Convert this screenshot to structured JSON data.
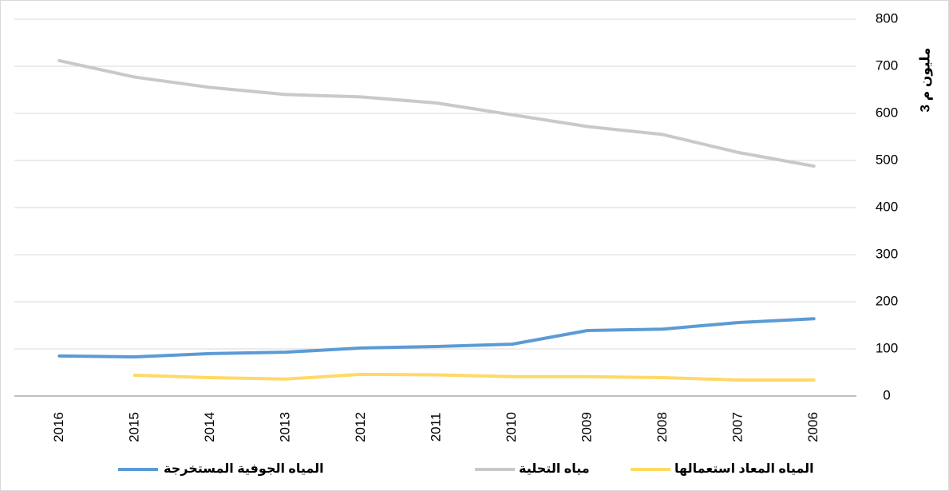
{
  "chart_data": {
    "type": "line",
    "y_label": "مليون م 3",
    "categories": [
      "2016",
      "2015",
      "2014",
      "2013",
      "2012",
      "2011",
      "2010",
      "2009",
      "2008",
      "2007",
      "2006"
    ],
    "series": [
      {
        "name": "المياه الجوفية المستخرجة",
        "color": "#5b9bd5",
        "values": [
          85,
          83,
          90,
          93,
          102,
          105,
          110,
          139,
          142,
          156,
          164
        ]
      },
      {
        "name": "مياه التحلية",
        "color": "#c9c9c9",
        "values": [
          712,
          677,
          655,
          640,
          635,
          622,
          597,
          572,
          555,
          517,
          488
        ]
      },
      {
        "name": "المياه المعاد استعمالها",
        "color": "#ffd966",
        "values": [
          null,
          44,
          39,
          36,
          46,
          45,
          41,
          41,
          39,
          34,
          34
        ]
      }
    ],
    "ylim": [
      0,
      800
    ],
    "yticks": [
      0,
      100,
      200,
      300,
      400,
      500,
      600,
      700,
      800
    ],
    "grid": true,
    "axis_side": "right",
    "legend_position": "bottom"
  }
}
